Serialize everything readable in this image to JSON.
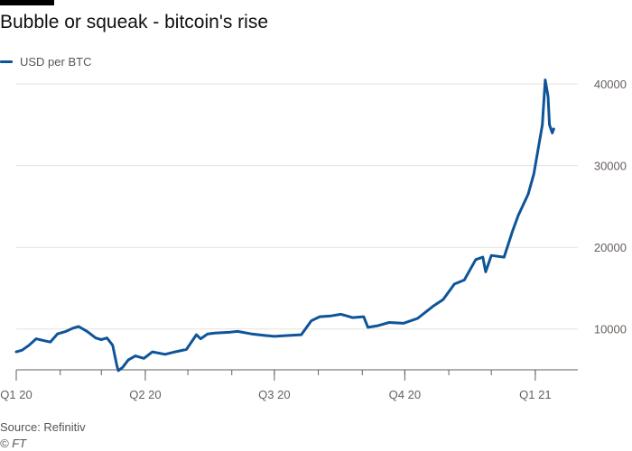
{
  "header": {
    "title": "Bubble or squeak - bitcoin's rise"
  },
  "footer": {
    "source": "Source: Refinitiv",
    "credit": "© FT"
  },
  "colors": {
    "series": "#0f5499",
    "grid": "#e6e1dc",
    "axis": "#66605c",
    "text": "#66605c"
  },
  "chart_data": {
    "type": "line",
    "title": "Bubble or squeak - bitcoin's rise",
    "xlabel": "",
    "ylabel": "",
    "xlim": [
      "2020-01-01",
      "2021-01-31"
    ],
    "ylim": [
      5000,
      42000
    ],
    "y_ticks": [
      10000,
      20000,
      30000,
      40000
    ],
    "y_tick_labels": [
      "10000",
      "20000",
      "30000",
      "40000"
    ],
    "x_ticks": [
      "2020-01-01",
      "2020-04-01",
      "2020-07-01",
      "2020-10-01",
      "2021-01-01"
    ],
    "x_tick_labels": [
      "Q1 20",
      "Q2 20",
      "Q3 20",
      "Q4 20",
      "Q1 21"
    ],
    "grid": true,
    "y_axis_side": "right",
    "legend_position": "top-left",
    "series": [
      {
        "name": "USD per BTC",
        "x": [
          "2020-01-01",
          "2020-01-05",
          "2020-01-10",
          "2020-01-15",
          "2020-01-20",
          "2020-01-25",
          "2020-01-30",
          "2020-02-05",
          "2020-02-10",
          "2020-02-14",
          "2020-02-20",
          "2020-02-26",
          "2020-03-01",
          "2020-03-05",
          "2020-03-09",
          "2020-03-12",
          "2020-03-13",
          "2020-03-16",
          "2020-03-20",
          "2020-03-25",
          "2020-03-31",
          "2020-04-06",
          "2020-04-15",
          "2020-04-22",
          "2020-04-30",
          "2020-05-07",
          "2020-05-10",
          "2020-05-15",
          "2020-05-20",
          "2020-05-30",
          "2020-06-05",
          "2020-06-15",
          "2020-06-25",
          "2020-07-01",
          "2020-07-10",
          "2020-07-20",
          "2020-07-27",
          "2020-08-02",
          "2020-08-10",
          "2020-08-17",
          "2020-08-25",
          "2020-09-02",
          "2020-09-05",
          "2020-09-12",
          "2020-09-20",
          "2020-09-30",
          "2020-10-10",
          "2020-10-21",
          "2020-10-28",
          "2020-11-05",
          "2020-11-12",
          "2020-11-20",
          "2020-11-25",
          "2020-11-27",
          "2020-12-01",
          "2020-12-10",
          "2020-12-16",
          "2020-12-20",
          "2020-12-27",
          "2020-12-31",
          "2021-01-03",
          "2021-01-06",
          "2021-01-08",
          "2021-01-10",
          "2021-01-11",
          "2021-01-13",
          "2021-01-14"
        ],
        "values": [
          7200,
          7400,
          8000,
          8800,
          8600,
          8400,
          9400,
          9700,
          10100,
          10300,
          9700,
          8900,
          8700,
          8900,
          8000,
          5500,
          4900,
          5300,
          6200,
          6700,
          6400,
          7200,
          6900,
          7200,
          7500,
          9300,
          8800,
          9400,
          9500,
          9600,
          9700,
          9400,
          9200,
          9100,
          9200,
          9300,
          11000,
          11500,
          11600,
          11800,
          11400,
          11500,
          10200,
          10400,
          10800,
          10700,
          11300,
          12800,
          13600,
          15500,
          16000,
          18500,
          18800,
          17000,
          19000,
          18800,
          22000,
          23900,
          26500,
          29000,
          32000,
          35000,
          40500,
          38500,
          35000,
          34000,
          34500
        ]
      }
    ]
  }
}
